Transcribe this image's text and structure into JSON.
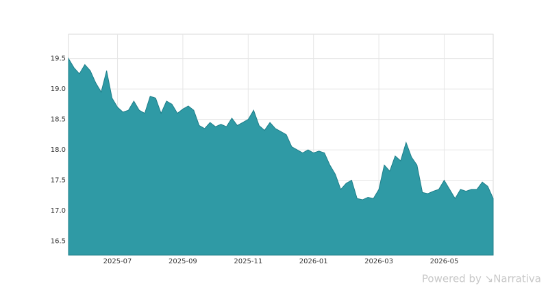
{
  "chart_data": {
    "type": "area",
    "categories": [
      null,
      null,
      null,
      null,
      null,
      null,
      null,
      null,
      null,
      "2025-07",
      null,
      null,
      null,
      null,
      null,
      null,
      null,
      null,
      null,
      null,
      null,
      "2025-09",
      null,
      null,
      null,
      null,
      null,
      null,
      null,
      null,
      null,
      null,
      null,
      "2025-11",
      null,
      null,
      null,
      null,
      null,
      null,
      null,
      null,
      null,
      null,
      null,
      "2026-01",
      null,
      null,
      null,
      null,
      null,
      null,
      null,
      null,
      null,
      null,
      null,
      "2026-03",
      null,
      null,
      null,
      null,
      null,
      null,
      null,
      null,
      null,
      null,
      null,
      "2026-05",
      null,
      null,
      null,
      null,
      null,
      null,
      null,
      null,
      null
    ],
    "values": [
      19.5,
      19.35,
      19.25,
      19.4,
      19.3,
      19.1,
      18.95,
      19.3,
      18.85,
      18.7,
      18.62,
      18.65,
      18.8,
      18.65,
      18.6,
      18.88,
      18.85,
      18.6,
      18.8,
      18.75,
      18.6,
      18.67,
      18.72,
      18.65,
      18.4,
      18.35,
      18.45,
      18.38,
      18.42,
      18.38,
      18.52,
      18.4,
      18.45,
      18.5,
      18.65,
      18.4,
      18.32,
      18.45,
      18.35,
      18.3,
      18.25,
      18.05,
      18.0,
      17.95,
      18.0,
      17.95,
      17.98,
      17.95,
      17.75,
      17.6,
      17.35,
      17.45,
      17.5,
      17.2,
      17.18,
      17.22,
      17.2,
      17.35,
      17.75,
      17.65,
      17.9,
      17.82,
      18.12,
      17.88,
      17.75,
      17.3,
      17.28,
      17.32,
      17.35,
      17.5,
      17.35,
      17.2,
      17.35,
      17.32,
      17.35,
      17.35,
      17.47,
      17.4,
      17.2
    ],
    "color": "#2f9aa5",
    "ylim": [
      16.27,
      19.9
    ],
    "yticks": [
      16.5,
      17.0,
      17.5,
      18.0,
      18.5,
      19.0,
      19.5
    ],
    "grid": true,
    "watermark": "Powered by ↘Narrativa"
  }
}
